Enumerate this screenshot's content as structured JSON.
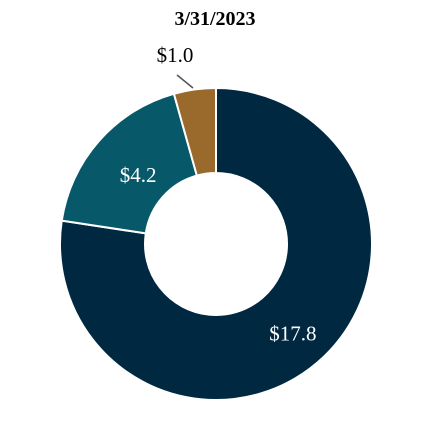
{
  "chart_data": {
    "type": "pie",
    "variant": "donut",
    "title": "3/31/2023",
    "categories": [
      "",
      "",
      ""
    ],
    "values": [
      17.8,
      4.2,
      1.0
    ],
    "labels": [
      "$17.8",
      "$4.2",
      "$1.0"
    ],
    "colors": [
      "#002841",
      "#07596a",
      "#996a2c"
    ],
    "label_colors": [
      "#ffffff",
      "#ffffff",
      "#000000"
    ],
    "legend": "none",
    "start": "12 o'clock",
    "direction": "clockwise"
  }
}
